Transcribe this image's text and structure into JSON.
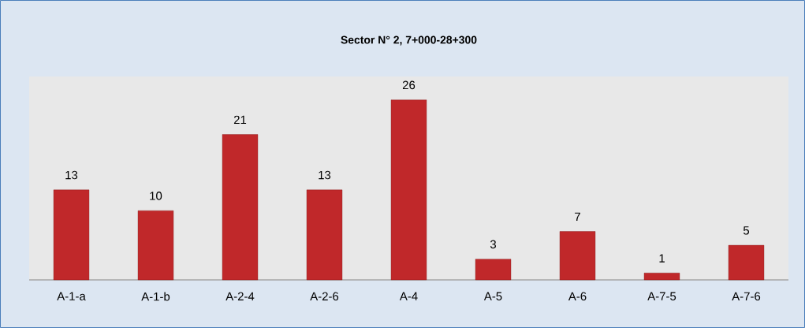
{
  "chart_data": {
    "type": "bar",
    "title": "Sector N° 2, 7+000-28+300",
    "categories": [
      "A-1-a",
      "A-1-b",
      "A-2-4",
      "A-2-6",
      "A-4",
      "A-5",
      "A-6",
      "A-7-5",
      "A-7-6"
    ],
    "values": [
      13,
      10,
      21,
      13,
      26,
      3,
      7,
      1,
      5
    ],
    "color": "#c0282a",
    "data_labels": true
  }
}
